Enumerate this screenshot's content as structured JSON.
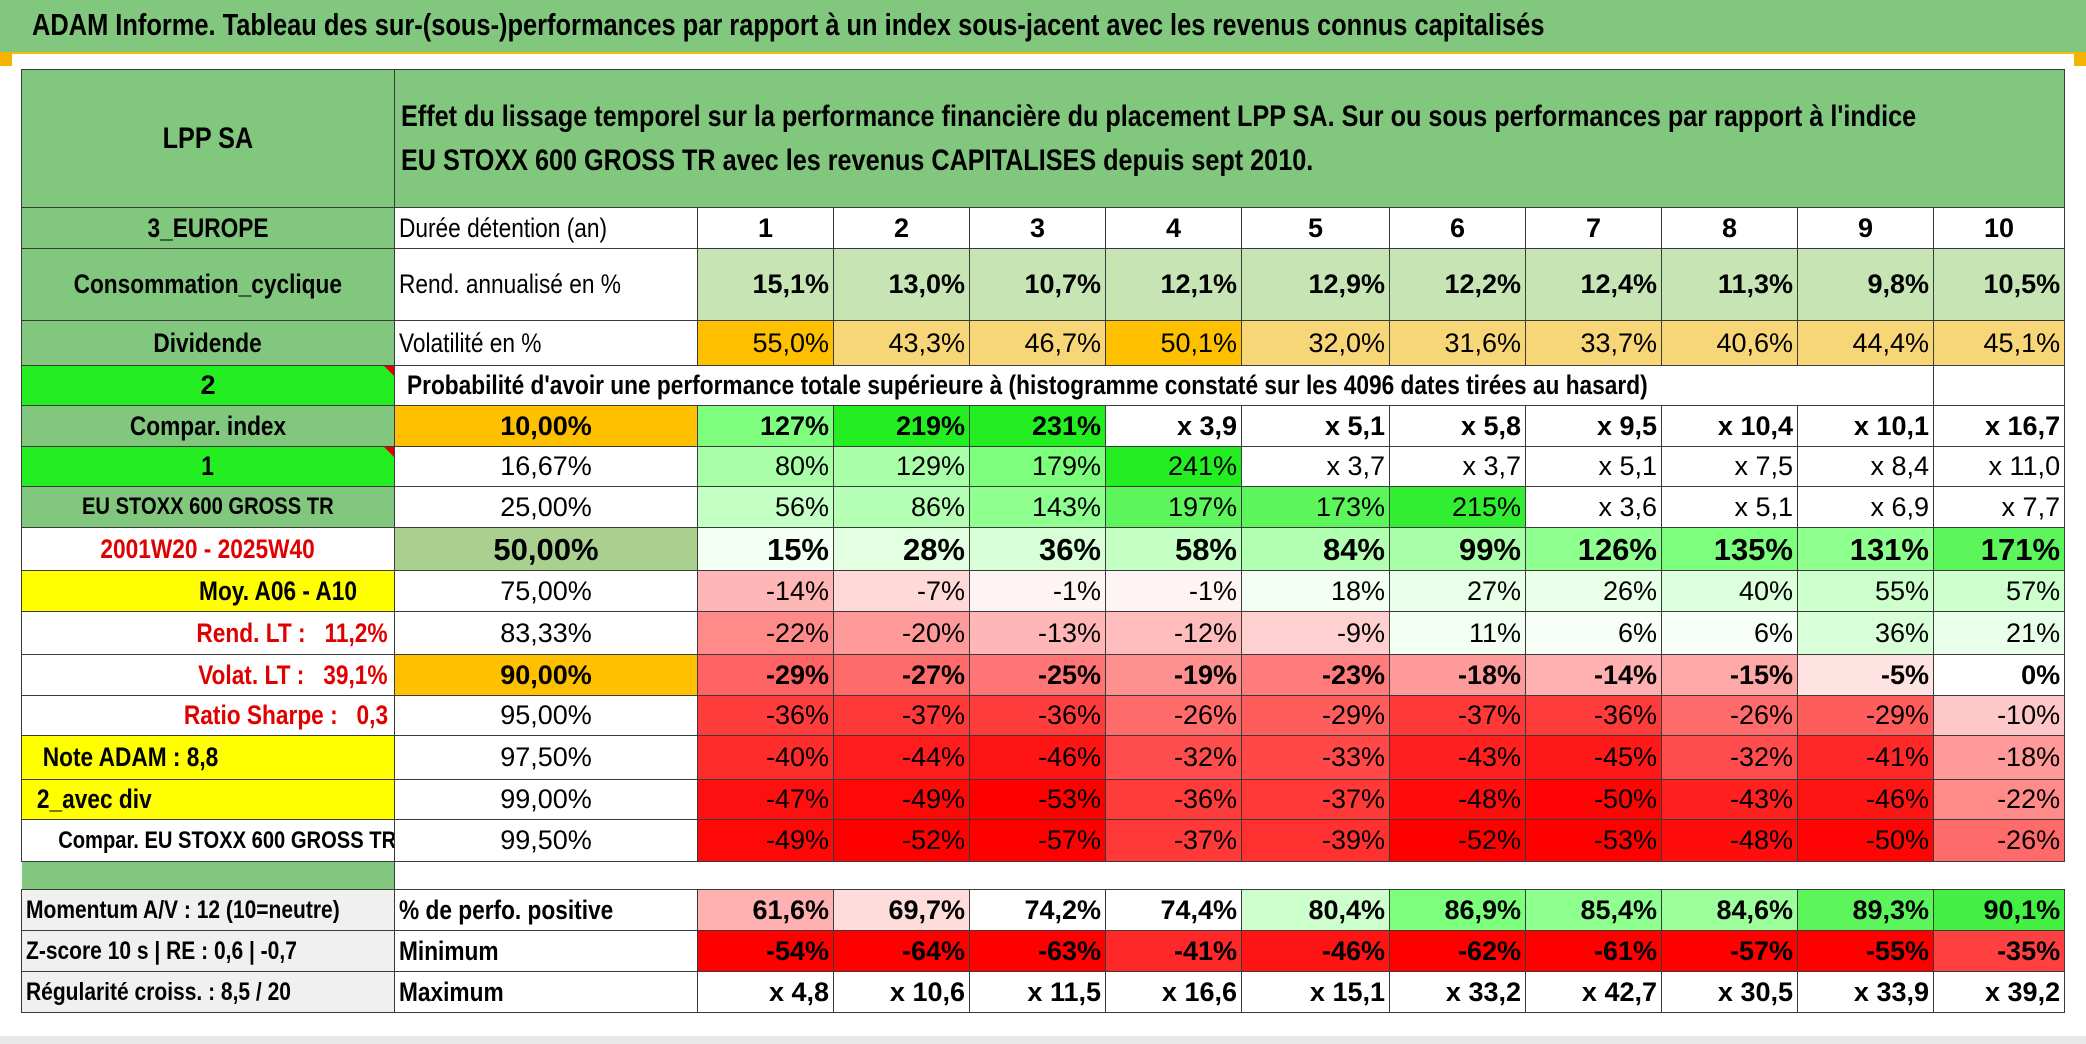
{
  "title": "ADAM Informe. Tableau des sur-(sous-)performances par rapport à un index sous-jacent avec les revenus connus capitalisés",
  "header": {
    "fund": "LPP SA",
    "description_line1": "Effet du lissage temporel sur la performance financière du placement LPP SA. Sur ou sous performances par rapport à l'indice",
    "description_line2": "EU STOXX 600 GROSS TR avec les revenus CAPITALISES depuis sept 2010."
  },
  "side": {
    "region": "3_EUROPE",
    "sector": "Consommation_cyclique",
    "dividend": "Dividende",
    "input1": "2",
    "compar_label": "Compar. index",
    "input2": "1",
    "index_name": "EU STOXX 600 GROSS TR",
    "period": "2001W20 - 2025W40",
    "avg": "Moy. A06 - A10",
    "rend_lt_label": "Rend. LT :",
    "rend_lt_value": "11,2%",
    "volat_lt_label": "Volat. LT :",
    "volat_lt_value": "39,1%",
    "sharpe_label": "Ratio Sharpe :",
    "sharpe_value": "0,3",
    "note": "Note ADAM : 8,8",
    "div_mode": "2_avec div",
    "compar_full": "Compar. EU STOXX 600 GROSS TR",
    "momentum": "Momentum A/V : 12 (10=neutre)",
    "zscore": "Z-score 10 s | RE : 0,6 | -0,7",
    "regularite": "Régularité croiss. : 8,5 / 20"
  },
  "stats": {
    "duration_label": "Durée détention (an)",
    "years": [
      "1",
      "2",
      "3",
      "4",
      "5",
      "6",
      "7",
      "8",
      "9",
      "10"
    ],
    "rend_label": "Rend. annualisé en %",
    "rend": [
      "15,1%",
      "13,0%",
      "10,7%",
      "12,1%",
      "12,9%",
      "12,2%",
      "12,4%",
      "11,3%",
      "9,8%",
      "10,5%"
    ],
    "vol_label": "Volatilité en %",
    "vol": [
      "55,0%",
      "43,3%",
      "46,7%",
      "50,1%",
      "32,0%",
      "31,6%",
      "33,7%",
      "40,6%",
      "44,4%",
      "45,1%"
    ],
    "vol_colors": [
      "#ffc000",
      "#f6d676",
      "#f6d676",
      "#ffc000",
      "#f6d676",
      "#f6d676",
      "#f6d676",
      "#f6d676",
      "#f6d676",
      "#f6d676"
    ],
    "prob_title": "Probabilité d'avoir une performance totale supérieure à (histogramme constaté sur les 4096 dates tirées au hasard)"
  },
  "percentile_rows": [
    {
      "p": "10,00%",
      "bold": true,
      "values": [
        "127%",
        "219%",
        "231%",
        "x 3,9",
        "x 5,1",
        "x 5,8",
        "x 9,5",
        "x 10,4",
        "x 10,1",
        "x 16,7"
      ],
      "colors": [
        "#7dff7d",
        "#22ee22",
        "#22ee22",
        "#ffffff",
        "#ffffff",
        "#ffffff",
        "#ffffff",
        "#ffffff",
        "#ffffff",
        "#ffffff"
      ]
    },
    {
      "p": "16,67%",
      "bold": false,
      "values": [
        "80%",
        "129%",
        "179%",
        "241%",
        "x 3,7",
        "x 3,7",
        "x 5,1",
        "x 7,5",
        "x 8,4",
        "x 11,0"
      ],
      "colors": [
        "#a8ffa8",
        "#a8ffa8",
        "#7dff7d",
        "#22ee22",
        "#ffffff",
        "#ffffff",
        "#ffffff",
        "#ffffff",
        "#ffffff",
        "#ffffff"
      ]
    },
    {
      "p": "25,00%",
      "bold": false,
      "values": [
        "56%",
        "86%",
        "143%",
        "197%",
        "173%",
        "215%",
        "x 3,6",
        "x 5,1",
        "x 6,9",
        "x 7,7"
      ],
      "colors": [
        "#c4ffc4",
        "#b4ffb4",
        "#8fff8f",
        "#5cf55c",
        "#5cf55c",
        "#32ee32",
        "#ffffff",
        "#ffffff",
        "#ffffff",
        "#ffffff"
      ]
    },
    {
      "p": "50,00%",
      "bold": true,
      "values": [
        "15%",
        "28%",
        "36%",
        "58%",
        "84%",
        "99%",
        "126%",
        "135%",
        "131%",
        "171%"
      ],
      "colors": [
        "#f2fff2",
        "#e2ffe2",
        "#d8ffd8",
        "#c4ffc4",
        "#b2ffb2",
        "#a8ffa8",
        "#8fff8f",
        "#7dff7d",
        "#8fff8f",
        "#5cf55c"
      ]
    },
    {
      "p": "75,00%",
      "bold": false,
      "values": [
        "-14%",
        "-7%",
        "-1%",
        "-1%",
        "18%",
        "27%",
        "26%",
        "40%",
        "55%",
        "57%"
      ],
      "colors": [
        "#ffb6b6",
        "#ffd8d8",
        "#fff4f4",
        "#fff4f4",
        "#f2fff2",
        "#e8ffe8",
        "#e8ffe8",
        "#dcffdc",
        "#ccffcc",
        "#ccffcc"
      ]
    },
    {
      "p": "83,33%",
      "bold": false,
      "values": [
        "-22%",
        "-20%",
        "-13%",
        "-12%",
        "-9%",
        "11%",
        "6%",
        "6%",
        "36%",
        "21%"
      ],
      "colors": [
        "#ff8a8a",
        "#ff9a9a",
        "#ffb6b6",
        "#ffbcbc",
        "#ffd0d0",
        "#f2fff2",
        "#f8fff8",
        "#f8fff8",
        "#d8ffd8",
        "#eaffea"
      ]
    },
    {
      "p": "90,00%",
      "bold": true,
      "values": [
        "-29%",
        "-27%",
        "-25%",
        "-19%",
        "-23%",
        "-18%",
        "-14%",
        "-15%",
        "-5%",
        "0%"
      ],
      "colors": [
        "#ff6262",
        "#ff6a6a",
        "#ff7474",
        "#ff9090",
        "#ff7c7c",
        "#ff9a9a",
        "#ffb0b0",
        "#ffa8a8",
        "#ffe2e2",
        "#ffffff"
      ]
    },
    {
      "p": "95,00%",
      "bold": false,
      "values": [
        "-36%",
        "-37%",
        "-36%",
        "-26%",
        "-29%",
        "-37%",
        "-36%",
        "-26%",
        "-29%",
        "-10%"
      ],
      "colors": [
        "#ff3c3c",
        "#ff3838",
        "#ff3c3c",
        "#ff6a6a",
        "#ff5c5c",
        "#ff3838",
        "#ff3c3c",
        "#ff6a6a",
        "#ff5c5c",
        "#ffc8c8"
      ]
    },
    {
      "p": "97,50%",
      "bold": false,
      "values": [
        "-40%",
        "-44%",
        "-46%",
        "-32%",
        "-33%",
        "-43%",
        "-45%",
        "-32%",
        "-41%",
        "-18%"
      ],
      "colors": [
        "#ff2c2c",
        "#ff1c1c",
        "#ff1414",
        "#ff4c4c",
        "#ff4848",
        "#ff2020",
        "#ff1818",
        "#ff4c4c",
        "#ff2828",
        "#ff9a9a"
      ]
    },
    {
      "p": "99,00%",
      "bold": false,
      "values": [
        "-47%",
        "-49%",
        "-53%",
        "-36%",
        "-37%",
        "-48%",
        "-50%",
        "-43%",
        "-46%",
        "-22%"
      ],
      "colors": [
        "#ff1010",
        "#ff0808",
        "#ff0000",
        "#ff3c3c",
        "#ff3838",
        "#ff0c0c",
        "#ff0404",
        "#ff2020",
        "#ff1414",
        "#ff8a8a"
      ]
    },
    {
      "p": "99,50%",
      "bold": false,
      "values": [
        "-49%",
        "-52%",
        "-57%",
        "-37%",
        "-39%",
        "-52%",
        "-53%",
        "-48%",
        "-50%",
        "-26%"
      ],
      "colors": [
        "#ff0808",
        "#ff0000",
        "#ff0000",
        "#ff3838",
        "#ff3030",
        "#ff0000",
        "#ff0000",
        "#ff0c0c",
        "#ff0404",
        "#ff6a6a"
      ]
    }
  ],
  "summary": {
    "pos_label": "% de perfo. positive",
    "pos": [
      "61,6%",
      "69,7%",
      "74,2%",
      "74,4%",
      "80,4%",
      "86,9%",
      "85,4%",
      "84,6%",
      "89,3%",
      "90,1%"
    ],
    "pos_colors": [
      "#ffb0b0",
      "#ffdcdc",
      "#ffffff",
      "#ffffff",
      "#ccffcc",
      "#7dff7d",
      "#8fff8f",
      "#9cff9c",
      "#5cf55c",
      "#44f044"
    ],
    "min_label": "Minimum",
    "min": [
      "-54%",
      "-64%",
      "-63%",
      "-41%",
      "-46%",
      "-62%",
      "-61%",
      "-57%",
      "-55%",
      "-35%"
    ],
    "min_colors": [
      "#ff0000",
      "#ff0000",
      "#ff0000",
      "#ff2828",
      "#ff1414",
      "#ff0000",
      "#ff0000",
      "#ff0000",
      "#ff0000",
      "#ff4040"
    ],
    "max_label": "Maximum",
    "max": [
      "x 4,8",
      "x 10,6",
      "x 11,5",
      "x 16,6",
      "x 15,1",
      "x 33,2",
      "x 42,7",
      "x 30,5",
      "x 33,9",
      "x 39,2"
    ]
  },
  "colors": {
    "header_green": "#82c77e",
    "rend_green": "#c6e4b4",
    "bright_green": "#22ee22",
    "orange": "#ffc000",
    "yellow": "#ffff00",
    "median_green": "#a9d08e",
    "label_red": "#e00000"
  }
}
